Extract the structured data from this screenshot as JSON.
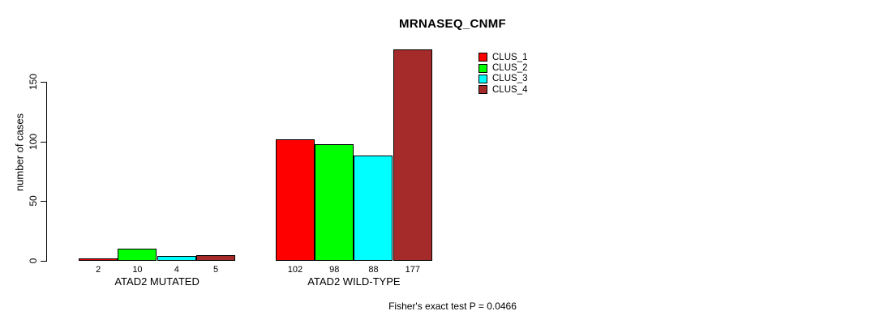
{
  "chart_data": {
    "type": "bar",
    "title": "MRNASEQ_CNMF",
    "ylabel": "number of cases",
    "xlabel": "",
    "categories": [
      "ATAD2 MUTATED",
      "ATAD2 WILD-TYPE"
    ],
    "series": [
      {
        "name": "CLUS_1",
        "color": "#ff0000",
        "values": [
          2,
          102
        ]
      },
      {
        "name": "CLUS_2",
        "color": "#00ff00",
        "values": [
          10,
          98
        ]
      },
      {
        "name": "CLUS_3",
        "color": "#00ffff",
        "values": [
          4,
          88
        ]
      },
      {
        "name": "CLUS_4",
        "color": "#a52a2a",
        "values": [
          5,
          177
        ]
      }
    ],
    "bar_value_labels": [
      [
        "2",
        "10",
        "4",
        "5"
      ],
      [
        "102",
        "98",
        "88",
        "177"
      ]
    ],
    "yticks": [
      0,
      50,
      100,
      150
    ],
    "ylim": [
      0,
      180
    ],
    "grid": false,
    "legend_position": "top-right",
    "annotation": "Fisher's exact test P = 0.0466"
  }
}
